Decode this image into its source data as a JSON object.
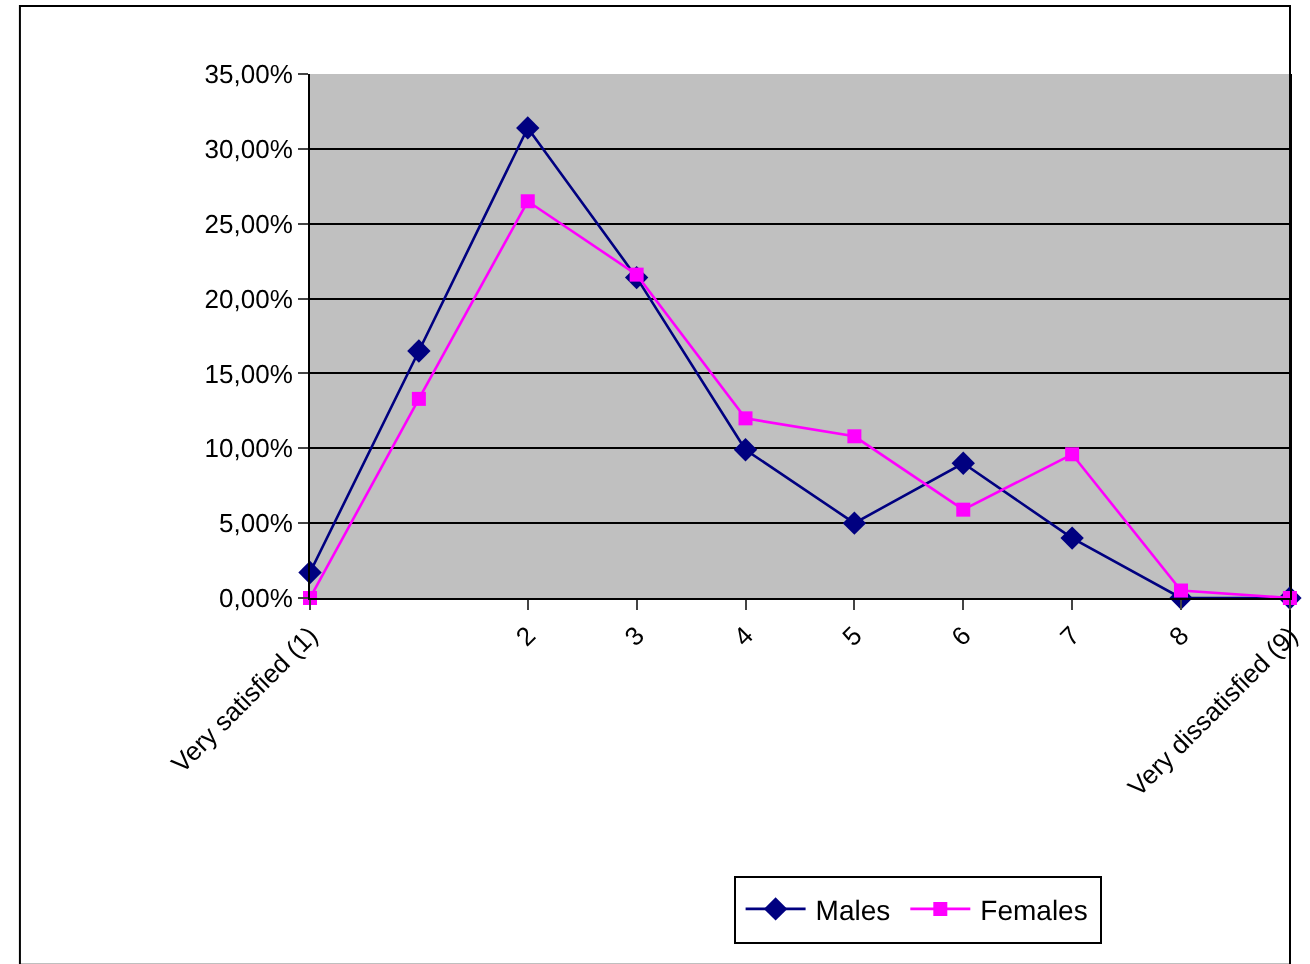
{
  "chart_data": {
    "type": "line",
    "categories": [
      "Very satisfied (1)",
      null,
      "2",
      "3",
      "4",
      "5",
      "6",
      "7",
      "8",
      "Very dissatisfied (9)"
    ],
    "series": [
      {
        "name": "Males",
        "color": "#000080",
        "marker": "diamond",
        "values": [
          1.7,
          16.5,
          31.4,
          21.4,
          9.9,
          5.0,
          9.0,
          4.0,
          0,
          0
        ]
      },
      {
        "name": "Females",
        "color": "#ff00ff",
        "marker": "square",
        "values": [
          0,
          13.3,
          26.5,
          21.6,
          12.0,
          10.8,
          5.9,
          9.6,
          0.5,
          0
        ]
      }
    ],
    "ylim": [
      0,
      35
    ],
    "yticks": [
      {
        "value": 0,
        "label": "0,00%"
      },
      {
        "value": 5,
        "label": "5,00%"
      },
      {
        "value": 10,
        "label": "10,00%"
      },
      {
        "value": 15,
        "label": "15,00%"
      },
      {
        "value": 20,
        "label": "20,00%"
      },
      {
        "value": 25,
        "label": "25,00%"
      },
      {
        "value": 30,
        "label": "30,00%"
      },
      {
        "value": 35,
        "label": "35,00%"
      }
    ],
    "grid": "y",
    "legend": "bottom",
    "line_style": "solid"
  }
}
